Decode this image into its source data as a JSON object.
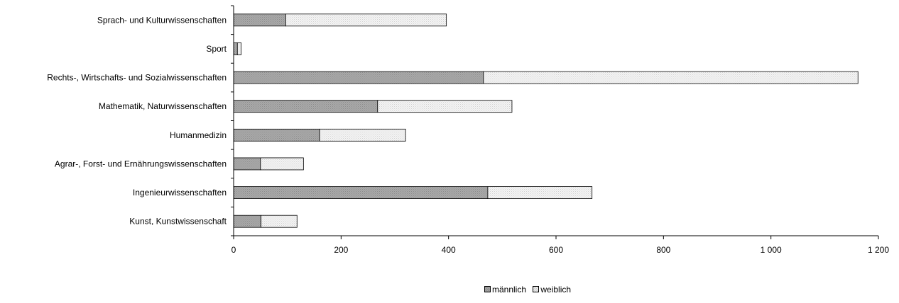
{
  "chart_data": {
    "type": "bar",
    "orientation": "horizontal",
    "stacked": true,
    "title": "",
    "xlabel": "",
    "ylabel": "",
    "categories": [
      "Sprach- und Kulturwissenschaften",
      "Sport",
      "Rechts-, Wirtschafts- und Sozialwissenschaften",
      "Mathematik, Naturwissenschaften",
      "Humanmedizin",
      "Agrar-, Forst- und Ernährungswissenschaften",
      "Ingenieurwissenschaften",
      "Kunst, Kunstwissenschaft"
    ],
    "series": [
      {
        "name": "männlich",
        "color": "#a6a6a6",
        "values": [
          97,
          7,
          465,
          268,
          160,
          50,
          473,
          51
        ]
      },
      {
        "name": "weiblich",
        "color": "#f2f2f2",
        "values": [
          299,
          7,
          697,
          250,
          160,
          80,
          194,
          67
        ]
      }
    ],
    "xlim": [
      0,
      1200
    ],
    "xticks": [
      0,
      200,
      400,
      600,
      800,
      1000,
      1200
    ],
    "xtick_labels": [
      "0",
      "200",
      "400",
      "600",
      "800",
      "1 000",
      "1 200"
    ],
    "grid": false,
    "legend_position": "bottom"
  }
}
